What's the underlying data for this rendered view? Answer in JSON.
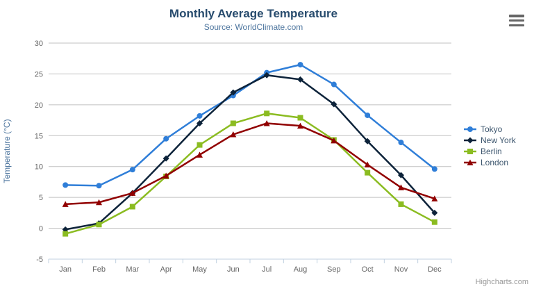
{
  "chart_data": {
    "type": "line",
    "title": "Monthly Average Temperature",
    "subtitle": "Source: WorldClimate.com",
    "categories": [
      "Jan",
      "Feb",
      "Mar",
      "Apr",
      "May",
      "Jun",
      "Jul",
      "Aug",
      "Sep",
      "Oct",
      "Nov",
      "Dec"
    ],
    "xlabel": "",
    "ylabel": "Temperature (°C)",
    "ylim": [
      -5,
      30
    ],
    "y_ticks": [
      -5,
      0,
      5,
      10,
      15,
      20,
      25,
      30
    ],
    "grid": true,
    "legend_position": "right",
    "series": [
      {
        "name": "Tokyo",
        "color": "#2f7ed8",
        "marker": "circle",
        "values": [
          7.0,
          6.9,
          9.5,
          14.5,
          18.2,
          21.5,
          25.2,
          26.5,
          23.3,
          18.3,
          13.9,
          9.6
        ]
      },
      {
        "name": "New York",
        "color": "#0d233a",
        "marker": "diamond",
        "values": [
          -0.2,
          0.8,
          5.7,
          11.3,
          17.0,
          22.0,
          24.8,
          24.1,
          20.1,
          14.1,
          8.6,
          2.5
        ]
      },
      {
        "name": "Berlin",
        "color": "#8bbc21",
        "marker": "square",
        "values": [
          -0.9,
          0.6,
          3.5,
          8.4,
          13.5,
          17.0,
          18.6,
          17.9,
          14.3,
          9.0,
          3.9,
          1.0
        ]
      },
      {
        "name": "London",
        "color": "#910000",
        "marker": "triangle",
        "values": [
          3.9,
          4.2,
          5.7,
          8.5,
          11.9,
          15.2,
          17.0,
          16.6,
          14.2,
          10.3,
          6.6,
          4.8
        ]
      }
    ],
    "credit": "Highcharts.com"
  },
  "colors": {
    "title": "#274b6d",
    "subtitle": "#4d759e",
    "axis_title": "#4d759e",
    "axis_labels": "#666666",
    "gridline": "#C0C0C0",
    "axis_line": "#C0D0E0",
    "legend_label": "#3E576F",
    "menu_icon": "#666666",
    "credit": "#999999"
  },
  "icons": {
    "export_menu": "hamburger-menu-icon"
  }
}
